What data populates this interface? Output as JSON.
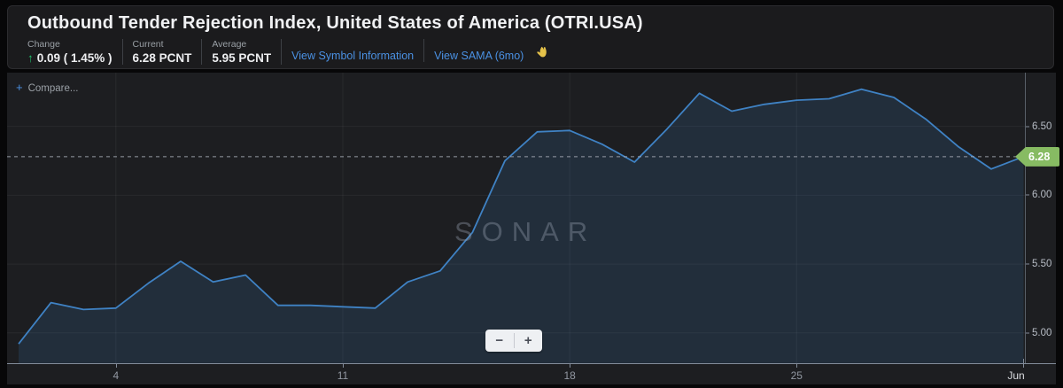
{
  "header": {
    "title": "Outbound Tender Rejection Index, United States of America (OTRI.USA)",
    "stats": [
      {
        "label": "Change",
        "arrow": "↑",
        "value": "0.09 ( 1.45% )"
      },
      {
        "label": "Current",
        "value": "6.28 PCNT"
      },
      {
        "label": "Average",
        "value": "5.95 PCNT"
      }
    ],
    "links": [
      {
        "label": "View Symbol Information"
      },
      {
        "label": "View SAMA (6mo)"
      }
    ]
  },
  "chart": {
    "compare_plus": "+",
    "compare_label": "Compare...",
    "watermark": "SONAR",
    "zoom_out_label": "−",
    "zoom_in_label": "+",
    "colors": {
      "line": "#3f82c4",
      "area_fill": "rgba(63,130,196,0.16)",
      "current_badge_green": "#87bb63",
      "link_blue": "#4a90e2",
      "change_green": "#1fbf6b",
      "emoji_yellow": "#e5c24a"
    }
  },
  "chart_data": {
    "type": "area",
    "title": "Outbound Tender Rejection Index, United States of America (OTRI.USA)",
    "unit": "PCNT",
    "current": 6.28,
    "current_label": "6.28",
    "average": 5.95,
    "change": "+0.09 (1.45%)",
    "legend": false,
    "grid": true,
    "ylim": [
      4.78,
      6.89
    ],
    "x": [
      "May 1",
      "May 2",
      "May 3",
      "May 4",
      "May 5",
      "May 6",
      "May 7",
      "May 8",
      "May 9",
      "May 10",
      "May 11",
      "May 12",
      "May 13",
      "May 14",
      "May 15",
      "May 16",
      "May 17",
      "May 18",
      "May 19",
      "May 20",
      "May 21",
      "May 22",
      "May 23",
      "May 24",
      "May 25",
      "May 26",
      "May 27",
      "May 28",
      "May 29",
      "May 30",
      "May 31",
      "Jun 1"
    ],
    "values": [
      4.92,
      5.22,
      5.17,
      5.18,
      5.36,
      5.52,
      5.37,
      5.42,
      5.2,
      5.2,
      5.19,
      5.18,
      5.37,
      5.45,
      5.73,
      6.25,
      6.46,
      6.47,
      6.37,
      6.24,
      6.48,
      6.74,
      6.61,
      6.66,
      6.69,
      6.7,
      6.77,
      6.71,
      6.55,
      6.35,
      6.19,
      6.28
    ],
    "yticks": [
      {
        "label": "6.50",
        "value": 6.5
      },
      {
        "label": "6.00",
        "value": 6.0
      },
      {
        "label": "5.50",
        "value": 5.5
      },
      {
        "label": "5.00",
        "value": 5.0
      }
    ],
    "xticks": [
      {
        "label": "4",
        "index": 3
      },
      {
        "label": "11",
        "index": 10
      },
      {
        "label": "18",
        "index": 17
      },
      {
        "label": "25",
        "index": 24
      },
      {
        "label": "Jun",
        "index": 31,
        "major": true
      }
    ]
  }
}
